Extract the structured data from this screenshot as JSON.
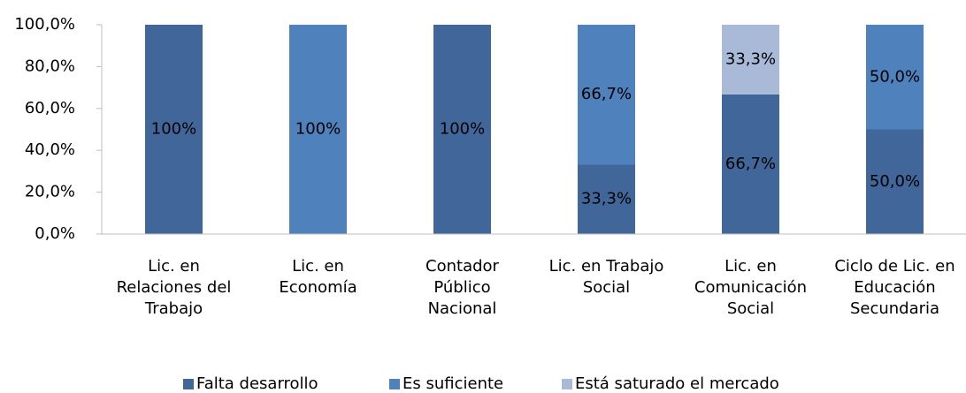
{
  "chart_data": {
    "type": "stacked_bar",
    "categories": [
      "Lic. en\nRelaciones del\nTrabajo",
      "Lic. en\nEconomía",
      "Contador\nPúblico\nNacional",
      "Lic. en Trabajo\nSocial",
      "Lic. en\nComunicación\nSocial",
      "Ciclo de Lic. en\nEducación\nSecundaria"
    ],
    "series": [
      {
        "name": "Falta desarrollo",
        "color": "#41679a",
        "values": [
          100,
          0,
          100,
          33.3,
          66.7,
          50
        ],
        "value_labels": [
          "100%",
          null,
          "100%",
          "33,3%",
          "66,7%",
          "50,0%"
        ]
      },
      {
        "name": "Es suficiente",
        "color": "#4f81bd",
        "values": [
          0,
          100,
          0,
          66.7,
          0,
          50
        ],
        "value_labels": [
          null,
          "100%",
          null,
          "66,7%",
          null,
          "50,0%"
        ]
      },
      {
        "name": "Está saturado el mercado",
        "color": "#a9b9d8",
        "values": [
          0,
          0,
          0,
          0,
          33.3,
          0
        ],
        "value_labels": [
          null,
          null,
          null,
          null,
          "33,3%",
          null
        ]
      }
    ],
    "ylim": [
      0,
      100
    ],
    "yticks": [
      {
        "value": 0,
        "label": "0,0%"
      },
      {
        "value": 20,
        "label": "20,0%"
      },
      {
        "value": 40,
        "label": "40,0%"
      },
      {
        "value": 60,
        "label": "60,0%"
      },
      {
        "value": 80,
        "label": "80,0%"
      },
      {
        "value": 100,
        "label": "100,0%"
      }
    ],
    "legend": "bottom"
  }
}
